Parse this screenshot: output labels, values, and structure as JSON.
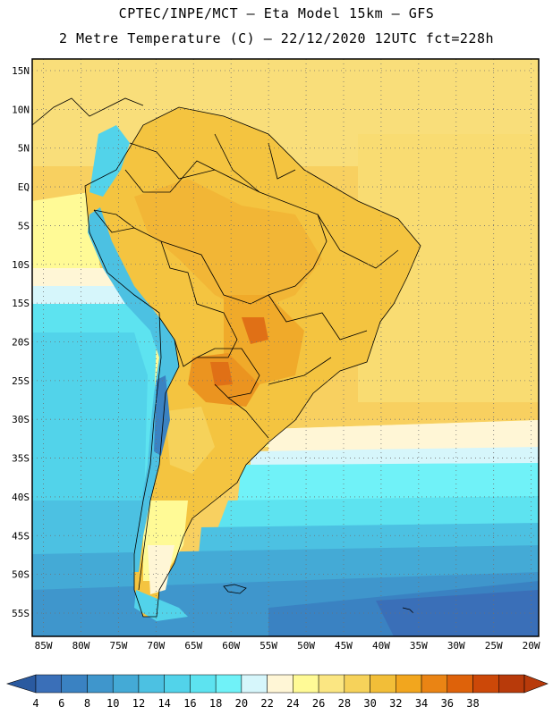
{
  "header": {
    "line1": "CPTEC/INPE/MCT –  Eta Model 15km – GFS",
    "line2": "2 Metre Temperature (C) – 22/12/2020 12UTC fct=228h"
  },
  "map": {
    "lat_labels": [
      "15N",
      "10N",
      "5N",
      "EQ",
      "5S",
      "10S",
      "15S",
      "20S",
      "25S",
      "30S",
      "35S",
      "40S",
      "45S",
      "50S",
      "55S"
    ],
    "lon_labels": [
      "85W",
      "80W",
      "75W",
      "70W",
      "65W",
      "60W",
      "55W",
      "50W",
      "45W",
      "40W",
      "35W",
      "30W",
      "25W",
      "20W"
    ],
    "lat_min": -58,
    "lat_max": 16.5,
    "lon_min": -86.5,
    "lon_max": -19,
    "background_color": "#f8d060",
    "grid": "dotted"
  },
  "colorbar": {
    "labels": [
      "4",
      "6",
      "8",
      "10",
      "12",
      "14",
      "16",
      "18",
      "20",
      "22",
      "24",
      "26",
      "28",
      "30",
      "32",
      "34",
      "36",
      "38"
    ],
    "colors": [
      "#3a6fb8",
      "#3a82c2",
      "#3f96cc",
      "#44aad6",
      "#4cc1e2",
      "#52d3ea",
      "#5de3f0",
      "#70f2f8",
      "#d6f6fb",
      "#fff6d6",
      "#fffa96",
      "#fbe682",
      "#f6d25a",
      "#f2be38",
      "#f2a61e",
      "#ea8414",
      "#de620a",
      "#cc4808",
      "#b83a0a"
    ],
    "low_color": "#2a5aa0",
    "high_color": "#b83a0a"
  }
}
